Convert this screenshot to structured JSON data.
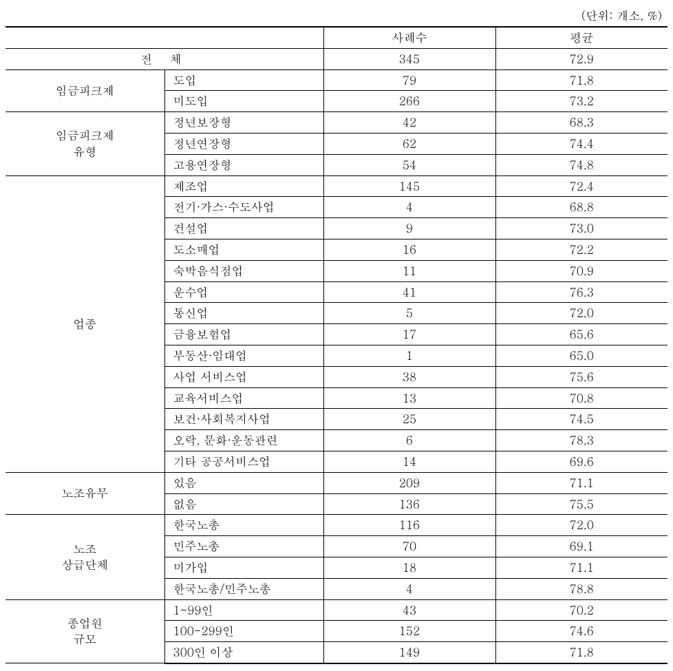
{
  "unit_label": "(단위: 개소, %)",
  "header": {
    "col_count": "사례수",
    "col_avg": "평균"
  },
  "total_row": {
    "label": "전 체",
    "count": "345",
    "avg": "72.9"
  },
  "sections": [
    {
      "category": "임금피크제",
      "rows": [
        {
          "label": "도입",
          "count": "79",
          "avg": "71.8"
        },
        {
          "label": "미도입",
          "count": "266",
          "avg": "73.2"
        }
      ]
    },
    {
      "category": "임금피크제\n유형",
      "rows": [
        {
          "label": "정년보장형",
          "count": "42",
          "avg": "68.3"
        },
        {
          "label": "정년연장형",
          "count": "62",
          "avg": "74.4"
        },
        {
          "label": "고용연장형",
          "count": "54",
          "avg": "74.8"
        }
      ]
    },
    {
      "category": "업종",
      "rows": [
        {
          "label": "제조업",
          "count": "145",
          "avg": "72.4"
        },
        {
          "label": "전기·가스·수도사업",
          "count": "4",
          "avg": "68.8"
        },
        {
          "label": "건설업",
          "count": "9",
          "avg": "73.0"
        },
        {
          "label": "도소매업",
          "count": "16",
          "avg": "72.2"
        },
        {
          "label": "숙박음식점업",
          "count": "11",
          "avg": "70.9"
        },
        {
          "label": "운수업",
          "count": "41",
          "avg": "76.3"
        },
        {
          "label": "통신업",
          "count": "5",
          "avg": "72.0"
        },
        {
          "label": "금융보험업",
          "count": "17",
          "avg": "65.6"
        },
        {
          "label": "부동산·임대업",
          "count": "1",
          "avg": "65.0"
        },
        {
          "label": "사업 서비스업",
          "count": "38",
          "avg": "75.6"
        },
        {
          "label": "교육서비스업",
          "count": "13",
          "avg": "70.8"
        },
        {
          "label": "보건·사회복지사업",
          "count": "25",
          "avg": "74.5"
        },
        {
          "label": "오락, 문화·운동관련",
          "count": "6",
          "avg": "78.3"
        },
        {
          "label": "기타 공공서비스업",
          "count": "14",
          "avg": "69.6"
        }
      ]
    },
    {
      "category": "노조유무",
      "rows": [
        {
          "label": "있음",
          "count": "209",
          "avg": "71.1"
        },
        {
          "label": "없음",
          "count": "136",
          "avg": "75.5"
        }
      ]
    },
    {
      "category": "노조\n상급단체",
      "rows": [
        {
          "label": "한국노총",
          "count": "116",
          "avg": "72.0"
        },
        {
          "label": "민주노총",
          "count": "70",
          "avg": "69.1"
        },
        {
          "label": "미가입",
          "count": "18",
          "avg": "71.1"
        },
        {
          "label": "한국노총/민주노총",
          "count": "4",
          "avg": "78.8"
        }
      ]
    },
    {
      "category": "종업원\n규모",
      "rows": [
        {
          "label": "1-99인",
          "count": "43",
          "avg": "70.2"
        },
        {
          "label": "100-299인",
          "count": "152",
          "avg": "74.6"
        },
        {
          "label": "300인 이상",
          "count": "149",
          "avg": "71.8"
        }
      ]
    }
  ]
}
